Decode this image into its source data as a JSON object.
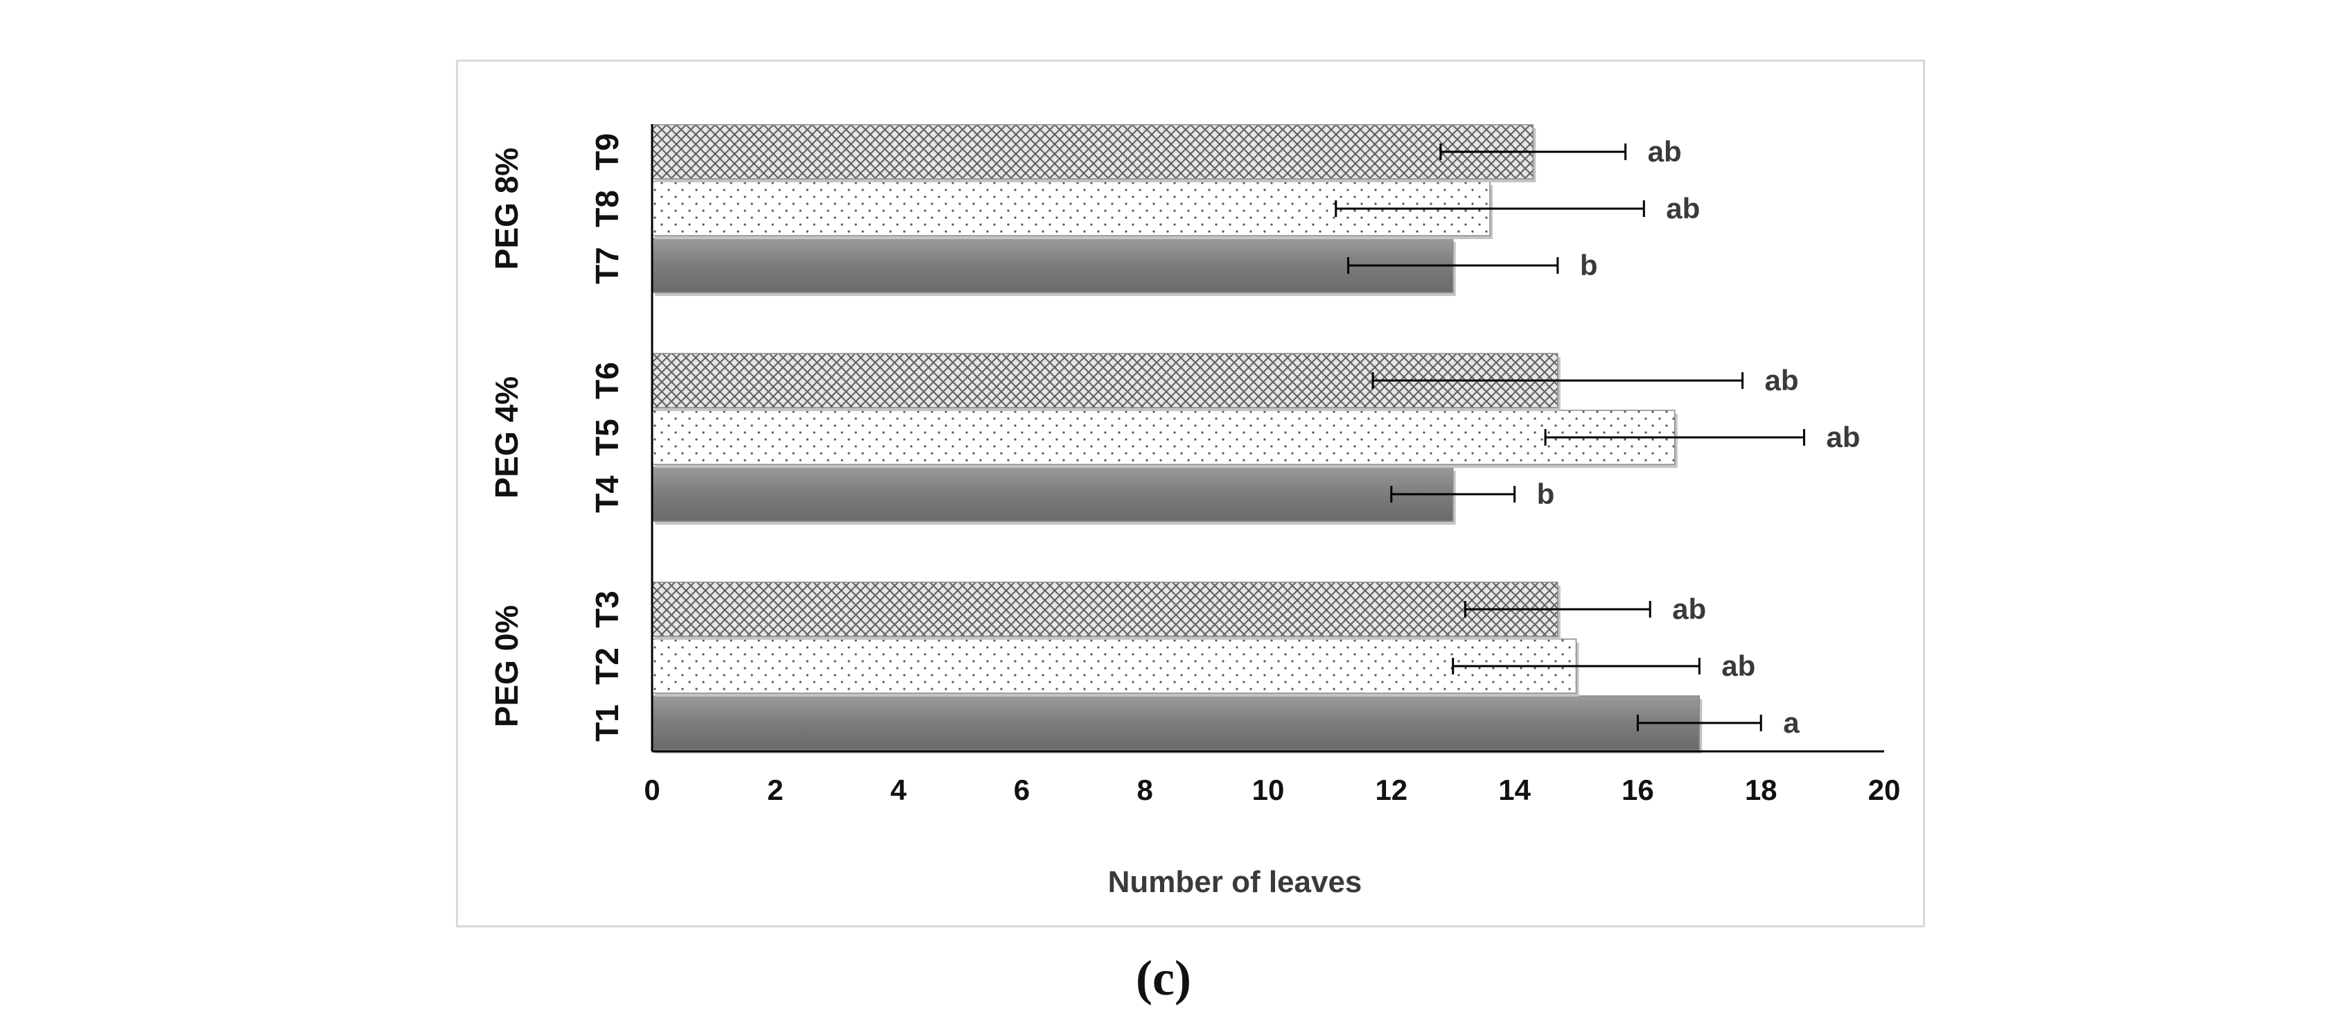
{
  "panel_caption": "(c)",
  "chart_data": {
    "type": "bar",
    "orientation": "horizontal",
    "xlabel": "Number of leaves",
    "xlim": [
      0,
      20
    ],
    "xticks": [
      0,
      2,
      4,
      6,
      8,
      10,
      12,
      14,
      16,
      18,
      20
    ],
    "grid": false,
    "legend": "none",
    "groups": [
      {
        "name": "PEG 0%",
        "bars": [
          {
            "label": "T1",
            "value": 17.0,
            "error": 1.0,
            "sig": "a",
            "fill": "solid"
          },
          {
            "label": "T2",
            "value": 15.0,
            "error": 2.0,
            "sig": "ab",
            "fill": "dots"
          },
          {
            "label": "T3",
            "value": 14.7,
            "error": 1.5,
            "sig": "ab",
            "fill": "crosshatch"
          }
        ]
      },
      {
        "name": "PEG 4%",
        "bars": [
          {
            "label": "T4",
            "value": 13.0,
            "error": 1.0,
            "sig": "b",
            "fill": "solid"
          },
          {
            "label": "T5",
            "value": 16.6,
            "error": 2.1,
            "sig": "ab",
            "fill": "dots"
          },
          {
            "label": "T6",
            "value": 14.7,
            "error": 3.0,
            "sig": "ab",
            "fill": "crosshatch"
          }
        ]
      },
      {
        "name": "PEG 8%",
        "bars": [
          {
            "label": "T7",
            "value": 13.0,
            "error": 1.7,
            "sig": "b",
            "fill": "solid"
          },
          {
            "label": "T8",
            "value": 13.6,
            "error": 2.5,
            "sig": "ab",
            "fill": "dots"
          },
          {
            "label": "T9",
            "value": 14.3,
            "error": 1.5,
            "sig": "ab",
            "fill": "crosshatch"
          }
        ]
      }
    ],
    "colors": {
      "solid": "#808080",
      "dots_bg": "#ffffff",
      "dots_fg": "#555555",
      "crosshatch_bg": "#e6e6e6",
      "crosshatch_fg": "#666666",
      "axis": "#000000",
      "text": "#3a3a3a"
    }
  }
}
